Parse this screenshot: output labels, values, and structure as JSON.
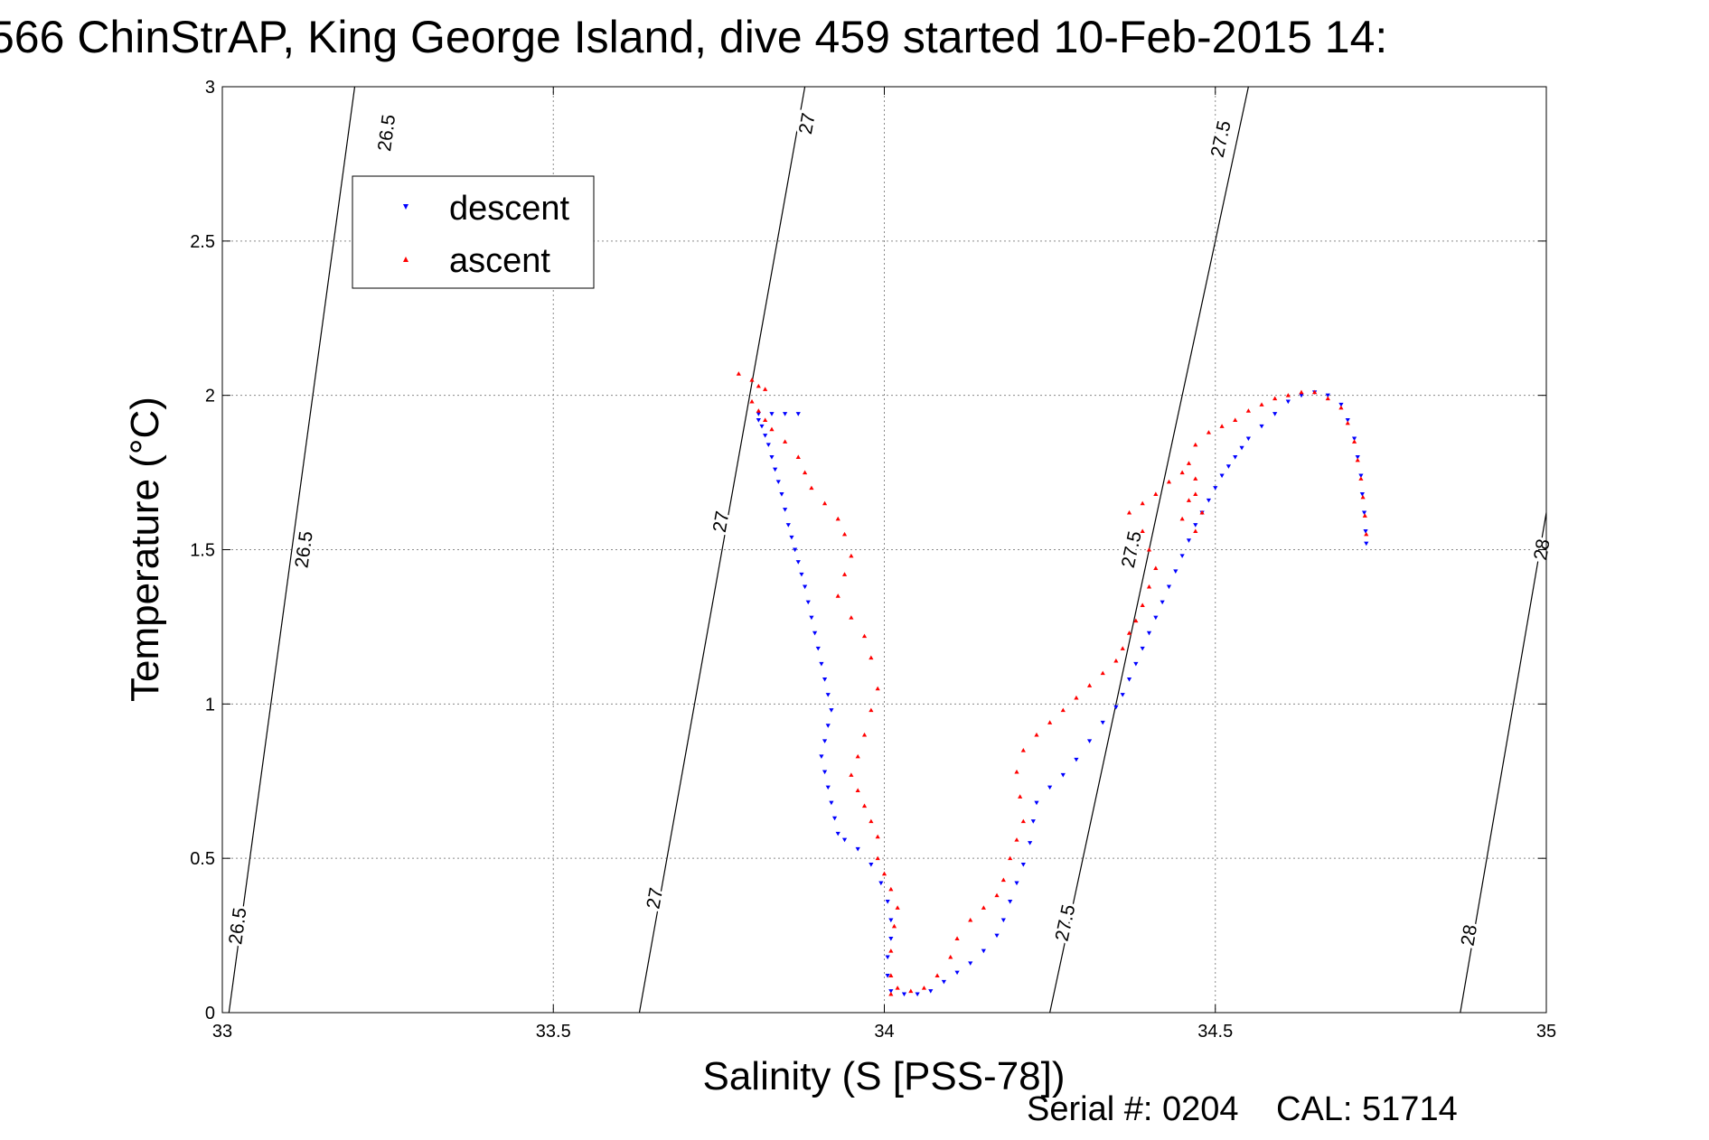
{
  "chart_data": {
    "type": "scatter",
    "title": "566 ChinStrAP, King George Island, dive 459 started 10-Feb-2015 14:",
    "xlabel": "Salinity (S [PSS-78])",
    "ylabel": "Temperature (°C)",
    "xlim": [
      33,
      35
    ],
    "ylim": [
      0,
      3
    ],
    "xticks": [
      33,
      33.5,
      34,
      34.5,
      35
    ],
    "xtick_labels": [
      "33",
      "33.5",
      "34",
      "34.5",
      "35"
    ],
    "yticks": [
      0,
      0.5,
      1,
      1.5,
      2,
      2.5,
      3
    ],
    "ytick_labels": [
      "0",
      "0.5",
      "1",
      "1.5",
      "2",
      "2.5",
      "3"
    ],
    "grid": true,
    "legend_position": "top-left",
    "density_contours": [
      {
        "label": "26.5",
        "line": [
          [
            33.01,
            0
          ],
          [
            33.2,
            3
          ]
        ],
        "label_positions": [
          [
            33.025,
            0.28
          ],
          [
            33.125,
            1.5
          ],
          [
            33.25,
            2.85
          ]
        ]
      },
      {
        "label": "27",
        "line": [
          [
            33.63,
            0
          ],
          [
            33.88,
            3
          ]
        ],
        "label_positions": [
          [
            33.655,
            0.37
          ],
          [
            33.755,
            1.59
          ],
          [
            33.885,
            2.88
          ]
        ]
      },
      {
        "label": "27.5",
        "line": [
          [
            34.25,
            0
          ],
          [
            34.55,
            3
          ]
        ],
        "label_positions": [
          [
            34.275,
            0.29
          ],
          [
            34.375,
            1.5
          ],
          [
            34.51,
            2.83
          ]
        ]
      },
      {
        "label": "28",
        "line": [
          [
            34.87,
            0
          ],
          [
            35.0,
            1.62
          ]
        ],
        "label_positions": [
          [
            34.885,
            0.25
          ],
          [
            34.995,
            1.5
          ]
        ]
      }
    ],
    "series": [
      {
        "name": "descent",
        "color": "#0000ff",
        "marker": "triangle-down",
        "points": [
          [
            33.81,
            1.94
          ],
          [
            33.83,
            1.94
          ],
          [
            33.85,
            1.94
          ],
          [
            33.87,
            1.94
          ],
          [
            33.81,
            1.92
          ],
          [
            33.815,
            1.9
          ],
          [
            33.82,
            1.87
          ],
          [
            33.825,
            1.84
          ],
          [
            33.83,
            1.8
          ],
          [
            33.835,
            1.76
          ],
          [
            33.84,
            1.72
          ],
          [
            33.845,
            1.68
          ],
          [
            33.85,
            1.63
          ],
          [
            33.855,
            1.58
          ],
          [
            33.86,
            1.54
          ],
          [
            33.865,
            1.5
          ],
          [
            33.87,
            1.46
          ],
          [
            33.875,
            1.42
          ],
          [
            33.88,
            1.38
          ],
          [
            33.885,
            1.33
          ],
          [
            33.89,
            1.28
          ],
          [
            33.895,
            1.23
          ],
          [
            33.9,
            1.18
          ],
          [
            33.905,
            1.13
          ],
          [
            33.91,
            1.08
          ],
          [
            33.915,
            1.03
          ],
          [
            33.92,
            0.98
          ],
          [
            33.915,
            0.93
          ],
          [
            33.91,
            0.88
          ],
          [
            33.905,
            0.83
          ],
          [
            33.91,
            0.78
          ],
          [
            33.915,
            0.73
          ],
          [
            33.92,
            0.68
          ],
          [
            33.925,
            0.63
          ],
          [
            33.93,
            0.58
          ],
          [
            33.94,
            0.56
          ],
          [
            33.96,
            0.53
          ],
          [
            33.98,
            0.48
          ],
          [
            33.995,
            0.42
          ],
          [
            34.005,
            0.36
          ],
          [
            34.01,
            0.3
          ],
          [
            34.01,
            0.24
          ],
          [
            34.005,
            0.18
          ],
          [
            34.005,
            0.12
          ],
          [
            34.01,
            0.07
          ],
          [
            34.03,
            0.06
          ],
          [
            34.05,
            0.06
          ],
          [
            34.07,
            0.07
          ],
          [
            34.09,
            0.1
          ],
          [
            34.11,
            0.13
          ],
          [
            34.13,
            0.16
          ],
          [
            34.15,
            0.2
          ],
          [
            34.17,
            0.25
          ],
          [
            34.18,
            0.3
          ],
          [
            34.19,
            0.36
          ],
          [
            34.2,
            0.42
          ],
          [
            34.21,
            0.48
          ],
          [
            34.22,
            0.55
          ],
          [
            34.225,
            0.62
          ],
          [
            34.23,
            0.68
          ],
          [
            34.25,
            0.73
          ],
          [
            34.27,
            0.77
          ],
          [
            34.29,
            0.82
          ],
          [
            34.31,
            0.88
          ],
          [
            34.33,
            0.94
          ],
          [
            34.35,
            0.99
          ],
          [
            34.36,
            1.03
          ],
          [
            34.37,
            1.08
          ],
          [
            34.38,
            1.13
          ],
          [
            34.39,
            1.18
          ],
          [
            34.4,
            1.23
          ],
          [
            34.41,
            1.28
          ],
          [
            34.42,
            1.33
          ],
          [
            34.43,
            1.38
          ],
          [
            34.44,
            1.43
          ],
          [
            34.45,
            1.48
          ],
          [
            34.46,
            1.53
          ],
          [
            34.47,
            1.58
          ],
          [
            34.48,
            1.62
          ],
          [
            34.49,
            1.66
          ],
          [
            34.5,
            1.7
          ],
          [
            34.51,
            1.74
          ],
          [
            34.52,
            1.77
          ],
          [
            34.53,
            1.8
          ],
          [
            34.54,
            1.83
          ],
          [
            34.55,
            1.86
          ],
          [
            34.57,
            1.9
          ],
          [
            34.59,
            1.94
          ],
          [
            34.61,
            1.98
          ],
          [
            34.63,
            2.0
          ],
          [
            34.65,
            2.01
          ],
          [
            34.67,
            2.0
          ],
          [
            34.69,
            1.97
          ],
          [
            34.7,
            1.92
          ],
          [
            34.71,
            1.86
          ],
          [
            34.715,
            1.8
          ],
          [
            34.72,
            1.74
          ],
          [
            34.722,
            1.68
          ],
          [
            34.725,
            1.62
          ],
          [
            34.727,
            1.56
          ],
          [
            34.728,
            1.52
          ]
        ]
      },
      {
        "name": "ascent",
        "color": "#ff0000",
        "marker": "triangle-up",
        "points": [
          [
            33.78,
            2.07
          ],
          [
            33.8,
            2.05
          ],
          [
            33.81,
            2.03
          ],
          [
            33.82,
            2.02
          ],
          [
            33.8,
            1.98
          ],
          [
            33.81,
            1.95
          ],
          [
            33.82,
            1.92
          ],
          [
            33.83,
            1.89
          ],
          [
            33.85,
            1.85
          ],
          [
            33.87,
            1.8
          ],
          [
            33.88,
            1.75
          ],
          [
            33.89,
            1.7
          ],
          [
            33.91,
            1.65
          ],
          [
            33.93,
            1.6
          ],
          [
            33.94,
            1.55
          ],
          [
            33.95,
            1.48
          ],
          [
            33.94,
            1.42
          ],
          [
            33.93,
            1.35
          ],
          [
            33.95,
            1.28
          ],
          [
            33.97,
            1.22
          ],
          [
            33.98,
            1.15
          ],
          [
            33.99,
            1.05
          ],
          [
            33.98,
            0.98
          ],
          [
            33.97,
            0.9
          ],
          [
            33.96,
            0.83
          ],
          [
            33.95,
            0.77
          ],
          [
            33.96,
            0.72
          ],
          [
            33.97,
            0.67
          ],
          [
            33.98,
            0.62
          ],
          [
            33.99,
            0.57
          ],
          [
            33.99,
            0.5
          ],
          [
            34.0,
            0.45
          ],
          [
            34.01,
            0.4
          ],
          [
            34.02,
            0.34
          ],
          [
            34.015,
            0.28
          ],
          [
            34.01,
            0.2
          ],
          [
            34.01,
            0.12
          ],
          [
            34.01,
            0.06
          ],
          [
            34.02,
            0.08
          ],
          [
            34.04,
            0.07
          ],
          [
            34.06,
            0.08
          ],
          [
            34.08,
            0.12
          ],
          [
            34.1,
            0.18
          ],
          [
            34.11,
            0.24
          ],
          [
            34.13,
            0.3
          ],
          [
            34.15,
            0.34
          ],
          [
            34.17,
            0.38
          ],
          [
            34.18,
            0.43
          ],
          [
            34.19,
            0.5
          ],
          [
            34.2,
            0.56
          ],
          [
            34.21,
            0.62
          ],
          [
            34.205,
            0.7
          ],
          [
            34.2,
            0.78
          ],
          [
            34.21,
            0.85
          ],
          [
            34.23,
            0.9
          ],
          [
            34.25,
            0.94
          ],
          [
            34.27,
            0.98
          ],
          [
            34.29,
            1.02
          ],
          [
            34.31,
            1.06
          ],
          [
            34.33,
            1.1
          ],
          [
            34.35,
            1.14
          ],
          [
            34.36,
            1.18
          ],
          [
            34.37,
            1.23
          ],
          [
            34.38,
            1.27
          ],
          [
            34.39,
            1.32
          ],
          [
            34.4,
            1.38
          ],
          [
            34.41,
            1.44
          ],
          [
            34.4,
            1.5
          ],
          [
            34.39,
            1.56
          ],
          [
            34.37,
            1.62
          ],
          [
            34.39,
            1.65
          ],
          [
            34.41,
            1.68
          ],
          [
            34.43,
            1.72
          ],
          [
            34.45,
            1.75
          ],
          [
            34.47,
            1.73
          ],
          [
            34.46,
            1.66
          ],
          [
            34.45,
            1.6
          ],
          [
            34.47,
            1.56
          ],
          [
            34.48,
            1.62
          ],
          [
            34.47,
            1.68
          ],
          [
            34.46,
            1.78
          ],
          [
            34.47,
            1.84
          ],
          [
            34.49,
            1.88
          ],
          [
            34.51,
            1.9
          ],
          [
            34.53,
            1.92
          ],
          [
            34.55,
            1.95
          ],
          [
            34.57,
            1.97
          ],
          [
            34.59,
            1.99
          ],
          [
            34.61,
            2.0
          ],
          [
            34.63,
            2.01
          ],
          [
            34.65,
            2.01
          ],
          [
            34.67,
            1.99
          ],
          [
            34.69,
            1.96
          ],
          [
            34.7,
            1.91
          ],
          [
            34.71,
            1.85
          ],
          [
            34.715,
            1.79
          ],
          [
            34.72,
            1.73
          ],
          [
            34.723,
            1.67
          ],
          [
            34.726,
            1.61
          ],
          [
            34.728,
            1.55
          ]
        ]
      }
    ]
  },
  "footer": {
    "serial_label": "Serial #: 0204",
    "cal_label": "CAL: 51714"
  }
}
